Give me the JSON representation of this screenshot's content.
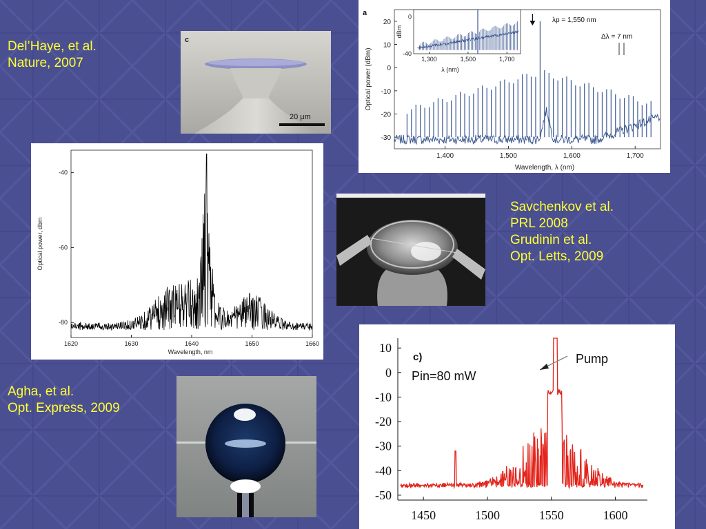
{
  "captions": {
    "delhaye_line1": "Del’Haye, et al.",
    "delhaye_line2": "Nature, 2007",
    "savchenkov_line1": "Savchenkov et al.",
    "savchenkov_line2": "PRL 2008",
    "grudinin_line1": "Grudinin et al.",
    "grudinin_line2": "Opt. Letts, 2009",
    "agha_line1": "Agha, et al.",
    "agha_line2": "Opt. Express, 2009"
  },
  "colors": {
    "background": "#4a4f92",
    "caption_text": "#ffff33",
    "panel_a_trace": "#3e5a92",
    "panel_c_trace": "#e3241c",
    "toroid_disk": "#8d90c4"
  },
  "photos": {
    "toroid": {
      "panel_letter": "c",
      "scalebar_label": "20 μm"
    },
    "disk": {},
    "sphere": {}
  },
  "chart_data": [
    {
      "id": "nature-panel-a",
      "type": "line",
      "panel_letter": "a",
      "xlabel": "Wavelength, λ (nm)",
      "ylabel": "Optical power (dBm)",
      "xlim": [
        1320,
        1740
      ],
      "ylim": [
        -35,
        25
      ],
      "xticks": [
        "1,400",
        "1,500",
        "1,600",
        "1,700"
      ],
      "xtick_values": [
        1400,
        1500,
        1600,
        1700
      ],
      "yticks": [
        "20",
        "10",
        "0",
        "-10",
        "-20",
        "-30"
      ],
      "ytick_values": [
        20,
        10,
        0,
        -10,
        -20,
        -30
      ],
      "annotations": {
        "pump": "λp = 1,550 nm",
        "spacing": "Δλ = 7 nm"
      },
      "comb": {
        "pump_nm": 1550,
        "pump_dbm": 20,
        "spacing_nm": 7
      },
      "inset": {
        "xlim": [
          1220,
          1770
        ],
        "ylim": [
          -40,
          8
        ],
        "xticks": [
          "1,300",
          "1,500",
          "1,700"
        ],
        "xtick_values": [
          1300,
          1500,
          1700
        ],
        "yticks": [
          "0",
          "-40"
        ],
        "ytick_values": [
          0,
          -40
        ],
        "ylabel": "dBm",
        "xlabel": "λ (nm)"
      }
    },
    {
      "id": "savchenkov-panel",
      "type": "line",
      "xlabel": "Wavelength, nm",
      "ylabel": "Optical power, dbm",
      "xlim": [
        1620,
        1660
      ],
      "ylim": [
        -84,
        -34
      ],
      "xticks": [
        "1620",
        "1630",
        "1640",
        "1650",
        "1660"
      ],
      "xtick_values": [
        1620,
        1630,
        1640,
        1650,
        1660
      ],
      "yticks": [
        "-40",
        "-60",
        "-80"
      ],
      "ytick_values": [
        -40,
        -60,
        -80
      ],
      "peak": {
        "x": 1642.5,
        "y": -35
      }
    },
    {
      "id": "agha-panel-c",
      "type": "line",
      "panel_letter": "c)",
      "annotation_power": "Pin=80 mW",
      "annotation_pump": "Pump",
      "xlim": [
        1430,
        1625
      ],
      "ylim": [
        -52,
        14
      ],
      "xticks": [
        "1450",
        "1500",
        "1550",
        "1600"
      ],
      "xtick_values": [
        1450,
        1500,
        1550,
        1600
      ],
      "yticks": [
        "10",
        "0",
        "-10",
        "-20",
        "-30",
        "-40",
        "-50"
      ],
      "ytick_values": [
        10,
        0,
        -10,
        -20,
        -30,
        -40,
        -50
      ],
      "pump": {
        "x": 1553,
        "y": 14
      }
    }
  ]
}
